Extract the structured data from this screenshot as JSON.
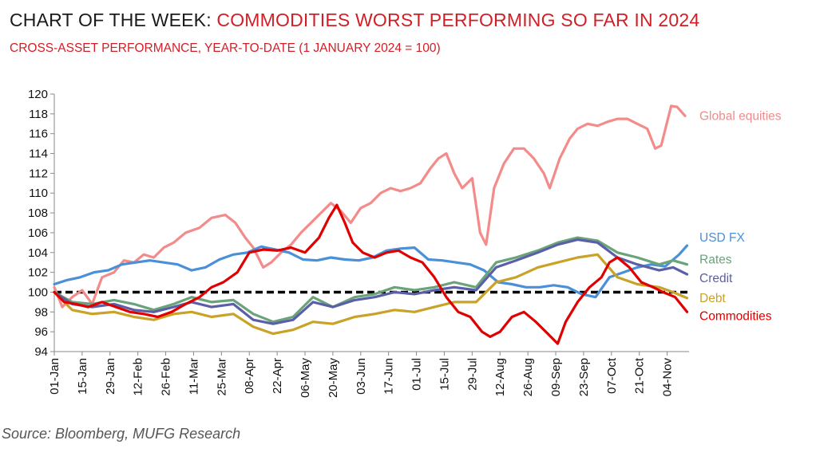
{
  "title": {
    "prefix": "CHART OF THE WEEK:",
    "highlight": "COMMODITIES WORST PERFORMING SO FAR IN 2024"
  },
  "subtitle": "CROSS-ASSET PERFORMANCE, YEAR-TO-DATE (1 JANUARY 2024 = 100)",
  "source": "Source: Bloomberg, MUFG Research",
  "chart_data": {
    "type": "line",
    "ylim": [
      94,
      120
    ],
    "yticks": [
      94,
      96,
      98,
      100,
      102,
      104,
      106,
      108,
      110,
      112,
      114,
      116,
      118,
      120
    ],
    "xlim": [
      "2024-01-01",
      "2024-11-15"
    ],
    "xticks": [
      "01-Jan",
      "15-Jan",
      "29-Jan",
      "12-Feb",
      "26-Feb",
      "11-Mar",
      "25-Mar",
      "08-Apr",
      "22-Apr",
      "06-May",
      "20-May",
      "03-Jun",
      "17-Jun",
      "01-Jul",
      "15-Jul",
      "29-Jul",
      "12-Aug",
      "26-Aug",
      "09-Sep",
      "23-Sep",
      "07-Oct",
      "21-Oct",
      "04-Nov"
    ],
    "xtick_dates": [
      "2024-01-01",
      "2024-01-15",
      "2024-01-29",
      "2024-02-12",
      "2024-02-26",
      "2024-03-11",
      "2024-03-25",
      "2024-04-08",
      "2024-04-22",
      "2024-05-06",
      "2024-05-20",
      "2024-06-03",
      "2024-06-17",
      "2024-07-01",
      "2024-07-15",
      "2024-07-29",
      "2024-08-12",
      "2024-08-26",
      "2024-09-09",
      "2024-09-23",
      "2024-10-07",
      "2024-10-21",
      "2024-11-04"
    ],
    "reference_line": {
      "y": 100,
      "style": "dashed",
      "color": "#000000"
    },
    "grid": false,
    "legend": "right",
    "series": [
      {
        "name": "Global equities",
        "color": "#f28b89",
        "label_y": 117.8,
        "x": [
          "2024-01-01",
          "2024-01-05",
          "2024-01-10",
          "2024-01-15",
          "2024-01-20",
          "2024-01-25",
          "2024-01-31",
          "2024-02-05",
          "2024-02-10",
          "2024-02-15",
          "2024-02-20",
          "2024-02-25",
          "2024-03-01",
          "2024-03-07",
          "2024-03-14",
          "2024-03-20",
          "2024-03-27",
          "2024-04-01",
          "2024-04-06",
          "2024-04-10",
          "2024-04-15",
          "2024-04-19",
          "2024-04-24",
          "2024-04-29",
          "2024-05-04",
          "2024-05-09",
          "2024-05-14",
          "2024-05-19",
          "2024-05-24",
          "2024-05-29",
          "2024-06-03",
          "2024-06-08",
          "2024-06-13",
          "2024-06-18",
          "2024-06-23",
          "2024-06-28",
          "2024-07-03",
          "2024-07-08",
          "2024-07-12",
          "2024-07-16",
          "2024-07-20",
          "2024-07-24",
          "2024-07-29",
          "2024-08-02",
          "2024-08-05",
          "2024-08-09",
          "2024-08-14",
          "2024-08-19",
          "2024-08-24",
          "2024-08-29",
          "2024-09-03",
          "2024-09-06",
          "2024-09-11",
          "2024-09-16",
          "2024-09-20",
          "2024-09-25",
          "2024-09-30",
          "2024-10-05",
          "2024-10-10",
          "2024-10-15",
          "2024-10-20",
          "2024-10-25",
          "2024-10-29",
          "2024-11-01",
          "2024-11-06",
          "2024-11-09",
          "2024-11-13"
        ],
        "values": [
          100.5,
          98.5,
          99.5,
          100.2,
          98.8,
          101.5,
          102.0,
          103.2,
          103.0,
          103.8,
          103.5,
          104.5,
          105.0,
          106.0,
          106.5,
          107.5,
          107.8,
          107.0,
          105.5,
          104.5,
          102.5,
          103.0,
          104.0,
          104.8,
          106.0,
          107.0,
          108.0,
          109.0,
          108.2,
          107.0,
          108.5,
          109.0,
          110.0,
          110.5,
          110.2,
          110.5,
          111.0,
          112.5,
          113.5,
          114.0,
          112.0,
          110.5,
          111.5,
          106.0,
          104.8,
          110.5,
          113.0,
          114.5,
          114.5,
          113.5,
          112.0,
          110.5,
          113.5,
          115.5,
          116.5,
          117.0,
          116.8,
          117.2,
          117.5,
          117.5,
          117.0,
          116.5,
          114.5,
          114.8,
          118.8,
          118.7,
          117.8
        ]
      },
      {
        "name": "USD FX",
        "color": "#4a90d9",
        "label_y": 105.5,
        "x": [
          "2024-01-01",
          "2024-01-07",
          "2024-01-14",
          "2024-01-21",
          "2024-01-28",
          "2024-02-04",
          "2024-02-11",
          "2024-02-18",
          "2024-02-25",
          "2024-03-03",
          "2024-03-10",
          "2024-03-17",
          "2024-03-24",
          "2024-03-31",
          "2024-04-07",
          "2024-04-14",
          "2024-04-21",
          "2024-04-28",
          "2024-05-05",
          "2024-05-12",
          "2024-05-19",
          "2024-05-26",
          "2024-06-02",
          "2024-06-09",
          "2024-06-16",
          "2024-06-23",
          "2024-06-30",
          "2024-07-07",
          "2024-07-14",
          "2024-07-21",
          "2024-07-28",
          "2024-08-04",
          "2024-08-11",
          "2024-08-18",
          "2024-08-25",
          "2024-09-01",
          "2024-09-08",
          "2024-09-15",
          "2024-09-22",
          "2024-09-29",
          "2024-10-06",
          "2024-10-13",
          "2024-10-20",
          "2024-10-27",
          "2024-11-03",
          "2024-11-10",
          "2024-11-14"
        ],
        "values": [
          100.8,
          101.2,
          101.5,
          102.0,
          102.2,
          102.8,
          103.0,
          103.2,
          103.0,
          102.8,
          102.2,
          102.5,
          103.3,
          103.8,
          104.0,
          104.6,
          104.3,
          104.0,
          103.3,
          103.2,
          103.5,
          103.3,
          103.2,
          103.5,
          104.2,
          104.4,
          104.5,
          103.3,
          103.2,
          103.0,
          102.8,
          102.2,
          101.0,
          100.8,
          100.5,
          100.5,
          100.7,
          100.5,
          99.8,
          99.5,
          101.5,
          102.0,
          102.5,
          102.8,
          102.6,
          103.8,
          104.7
        ]
      },
      {
        "name": "Rates",
        "color": "#6aa37a",
        "label_y": 103.3,
        "x": [
          "2024-01-01",
          "2024-01-10",
          "2024-01-20",
          "2024-01-31",
          "2024-02-10",
          "2024-02-20",
          "2024-03-01",
          "2024-03-10",
          "2024-03-20",
          "2024-03-31",
          "2024-04-10",
          "2024-04-20",
          "2024-04-30",
          "2024-05-10",
          "2024-05-20",
          "2024-05-31",
          "2024-06-10",
          "2024-06-20",
          "2024-06-30",
          "2024-07-10",
          "2024-07-20",
          "2024-07-31",
          "2024-08-10",
          "2024-08-20",
          "2024-08-31",
          "2024-09-10",
          "2024-09-20",
          "2024-09-30",
          "2024-10-10",
          "2024-10-20",
          "2024-10-31",
          "2024-11-07",
          "2024-11-14"
        ],
        "values": [
          100.0,
          99.0,
          98.8,
          99.2,
          98.8,
          98.2,
          98.8,
          99.5,
          99.0,
          99.2,
          97.8,
          97.0,
          97.5,
          99.5,
          98.5,
          99.5,
          99.8,
          100.5,
          100.2,
          100.5,
          101.0,
          100.5,
          103.0,
          103.5,
          104.2,
          105.0,
          105.5,
          105.2,
          104.0,
          103.5,
          102.8,
          103.2,
          102.8
        ]
      },
      {
        "name": "Credit",
        "color": "#5a5fa8",
        "label_y": 101.4,
        "x": [
          "2024-01-01",
          "2024-01-10",
          "2024-01-20",
          "2024-01-31",
          "2024-02-10",
          "2024-02-20",
          "2024-03-01",
          "2024-03-10",
          "2024-03-20",
          "2024-03-31",
          "2024-04-10",
          "2024-04-20",
          "2024-04-30",
          "2024-05-10",
          "2024-05-20",
          "2024-05-31",
          "2024-06-10",
          "2024-06-20",
          "2024-06-30",
          "2024-07-10",
          "2024-07-20",
          "2024-07-31",
          "2024-08-10",
          "2024-08-20",
          "2024-08-31",
          "2024-09-10",
          "2024-09-20",
          "2024-09-30",
          "2024-10-10",
          "2024-10-20",
          "2024-10-31",
          "2024-11-07",
          "2024-11-14"
        ],
        "values": [
          100.0,
          98.8,
          98.5,
          98.8,
          98.2,
          98.0,
          98.5,
          99.0,
          98.5,
          98.8,
          97.2,
          96.8,
          97.2,
          99.0,
          98.5,
          99.2,
          99.5,
          100.0,
          99.8,
          100.2,
          100.5,
          100.2,
          102.5,
          103.2,
          104.0,
          104.8,
          105.3,
          105.0,
          103.5,
          102.8,
          102.2,
          102.5,
          101.8
        ]
      },
      {
        "name": "Debt",
        "color": "#c9a227",
        "label_y": 99.4,
        "x": [
          "2024-01-01",
          "2024-01-10",
          "2024-01-20",
          "2024-01-31",
          "2024-02-10",
          "2024-02-20",
          "2024-03-01",
          "2024-03-10",
          "2024-03-20",
          "2024-03-31",
          "2024-04-10",
          "2024-04-20",
          "2024-04-30",
          "2024-05-10",
          "2024-05-20",
          "2024-05-31",
          "2024-06-10",
          "2024-06-20",
          "2024-06-30",
          "2024-07-10",
          "2024-07-20",
          "2024-07-31",
          "2024-08-10",
          "2024-08-20",
          "2024-08-31",
          "2024-09-10",
          "2024-09-20",
          "2024-09-30",
          "2024-10-10",
          "2024-10-20",
          "2024-10-31",
          "2024-11-07",
          "2024-11-14"
        ],
        "values": [
          100.0,
          98.2,
          97.8,
          98.0,
          97.5,
          97.2,
          97.8,
          98.0,
          97.5,
          97.8,
          96.5,
          95.8,
          96.2,
          97.0,
          96.8,
          97.5,
          97.8,
          98.2,
          98.0,
          98.5,
          99.0,
          99.0,
          101.0,
          101.5,
          102.5,
          103.0,
          103.5,
          103.8,
          101.5,
          100.8,
          100.5,
          100.0,
          99.4
        ]
      },
      {
        "name": "Commodities",
        "color": "#e00000",
        "label_y": 97.6,
        "x": [
          "2024-01-01",
          "2024-01-06",
          "2024-01-12",
          "2024-01-18",
          "2024-01-25",
          "2024-02-01",
          "2024-02-08",
          "2024-02-15",
          "2024-02-22",
          "2024-02-29",
          "2024-03-07",
          "2024-03-14",
          "2024-03-20",
          "2024-03-26",
          "2024-04-02",
          "2024-04-08",
          "2024-04-15",
          "2024-04-22",
          "2024-04-29",
          "2024-05-06",
          "2024-05-13",
          "2024-05-18",
          "2024-05-22",
          "2024-05-26",
          "2024-05-30",
          "2024-06-04",
          "2024-06-10",
          "2024-06-16",
          "2024-06-22",
          "2024-06-28",
          "2024-07-04",
          "2024-07-10",
          "2024-07-16",
          "2024-07-22",
          "2024-07-28",
          "2024-08-03",
          "2024-08-07",
          "2024-08-12",
          "2024-08-18",
          "2024-08-24",
          "2024-08-30",
          "2024-09-05",
          "2024-09-10",
          "2024-09-14",
          "2024-09-20",
          "2024-09-26",
          "2024-10-02",
          "2024-10-06",
          "2024-10-10",
          "2024-10-16",
          "2024-10-22",
          "2024-10-28",
          "2024-11-02",
          "2024-11-08",
          "2024-11-14"
        ],
        "values": [
          100.0,
          99.0,
          98.8,
          98.5,
          99.0,
          98.5,
          98.0,
          97.8,
          97.5,
          98.0,
          98.8,
          99.5,
          100.5,
          101.0,
          102.0,
          104.0,
          104.3,
          104.2,
          104.5,
          104.0,
          105.5,
          107.5,
          108.8,
          107.0,
          105.0,
          104.0,
          103.5,
          104.0,
          104.2,
          103.5,
          103.0,
          101.5,
          99.5,
          98.0,
          97.5,
          96.0,
          95.5,
          96.0,
          97.5,
          98.0,
          97.0,
          95.8,
          94.8,
          97.0,
          99.0,
          100.5,
          101.5,
          103.0,
          103.5,
          102.5,
          101.0,
          100.5,
          100.0,
          99.5,
          98.0
        ]
      }
    ]
  }
}
